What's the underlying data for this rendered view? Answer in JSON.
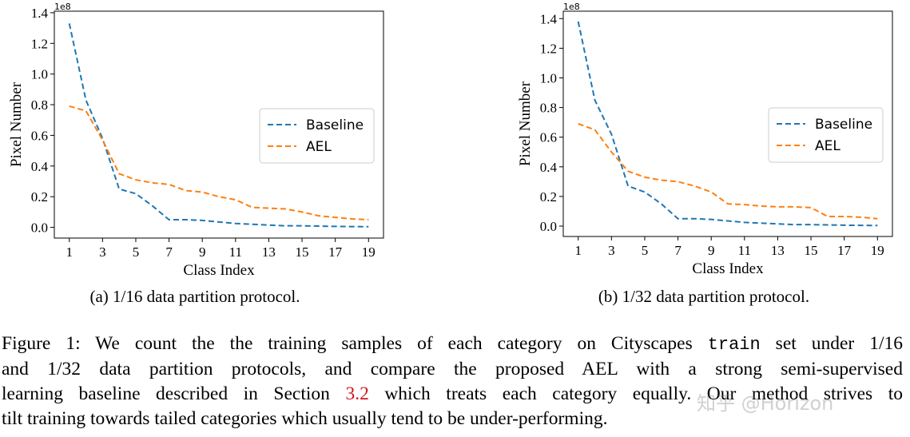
{
  "chart_data": [
    {
      "type": "line",
      "subtitle": "(a) 1/16 data partition protocol.",
      "x_label": "Class Index",
      "y_label": "Pixel Number",
      "y_offset_label": "1e8",
      "x": [
        1,
        2,
        3,
        4,
        5,
        6,
        7,
        8,
        9,
        10,
        11,
        12,
        13,
        14,
        15,
        16,
        17,
        18,
        19
      ],
      "series": [
        {
          "name": "Baseline",
          "color": "#1f77b4",
          "values": [
            1.33,
            0.83,
            0.58,
            0.25,
            0.22,
            0.14,
            0.05,
            0.05,
            0.045,
            0.035,
            0.025,
            0.02,
            0.015,
            0.01,
            0.01,
            0.008,
            0.006,
            0.005,
            0.004
          ]
        },
        {
          "name": "AEL",
          "color": "#ff7f0e",
          "values": [
            0.79,
            0.76,
            0.57,
            0.35,
            0.31,
            0.29,
            0.28,
            0.24,
            0.23,
            0.2,
            0.18,
            0.13,
            0.125,
            0.12,
            0.1,
            0.075,
            0.065,
            0.055,
            0.05
          ]
        }
      ],
      "line_style": "dashed",
      "legend": "center right",
      "xlim": [
        0.1,
        19.9
      ],
      "xticks": [
        1,
        3,
        5,
        7,
        9,
        11,
        13,
        15,
        17,
        19
      ],
      "ylim": [
        -0.07,
        1.41
      ],
      "yticks": [
        {
          "value": 0,
          "label": "0.0"
        },
        0.2,
        0.4,
        0.6,
        0.8,
        {
          "value": 1,
          "label": "1.0"
        },
        1.2,
        1.4
      ]
    },
    {
      "type": "line",
      "subtitle": "(b) 1/32 data partition protocol.",
      "x_label": "Class Index",
      "y_label": "Pixel Number",
      "y_offset_label": "1e8",
      "x": [
        1,
        2,
        3,
        4,
        5,
        6,
        7,
        8,
        9,
        10,
        11,
        12,
        13,
        14,
        15,
        16,
        17,
        18,
        19
      ],
      "series": [
        {
          "name": "Baseline",
          "color": "#1f77b4",
          "values": [
            1.38,
            0.85,
            0.62,
            0.27,
            0.23,
            0.15,
            0.05,
            0.05,
            0.045,
            0.035,
            0.025,
            0.02,
            0.015,
            0.01,
            0.01,
            0.008,
            0.006,
            0.005,
            0.004
          ]
        },
        {
          "name": "AEL",
          "color": "#ff7f0e",
          "values": [
            0.69,
            0.65,
            0.5,
            0.37,
            0.33,
            0.31,
            0.3,
            0.27,
            0.23,
            0.15,
            0.145,
            0.135,
            0.13,
            0.13,
            0.125,
            0.065,
            0.065,
            0.06,
            0.05
          ]
        }
      ],
      "line_style": "dashed",
      "legend": "center right",
      "xlim": [
        0.1,
        19.9
      ],
      "xticks": [
        1,
        3,
        5,
        7,
        9,
        11,
        13,
        15,
        17,
        19
      ],
      "ylim": [
        -0.07,
        1.45
      ],
      "yticks": [
        {
          "value": 0,
          "label": "0.0"
        },
        0.2,
        0.4,
        0.6,
        0.8,
        {
          "value": 1,
          "label": "1.0"
        },
        1.2,
        1.4
      ]
    }
  ],
  "caption": {
    "lines": [
      [
        "Figure 1: We count the the training samples of each category on Cityscapes ",
        "train",
        " set under 1/16"
      ],
      [
        "and 1/32 data partition protocols, and compare the proposed AEL with a strong semi-supervised"
      ],
      [
        "learning baseline described in Section ",
        "3.2",
        " which treats each category equally. Our method strives to"
      ],
      [
        "tilt training towards tailed categories which usually tend to be under-performing."
      ]
    ]
  },
  "watermark": "知乎 @Horizon"
}
